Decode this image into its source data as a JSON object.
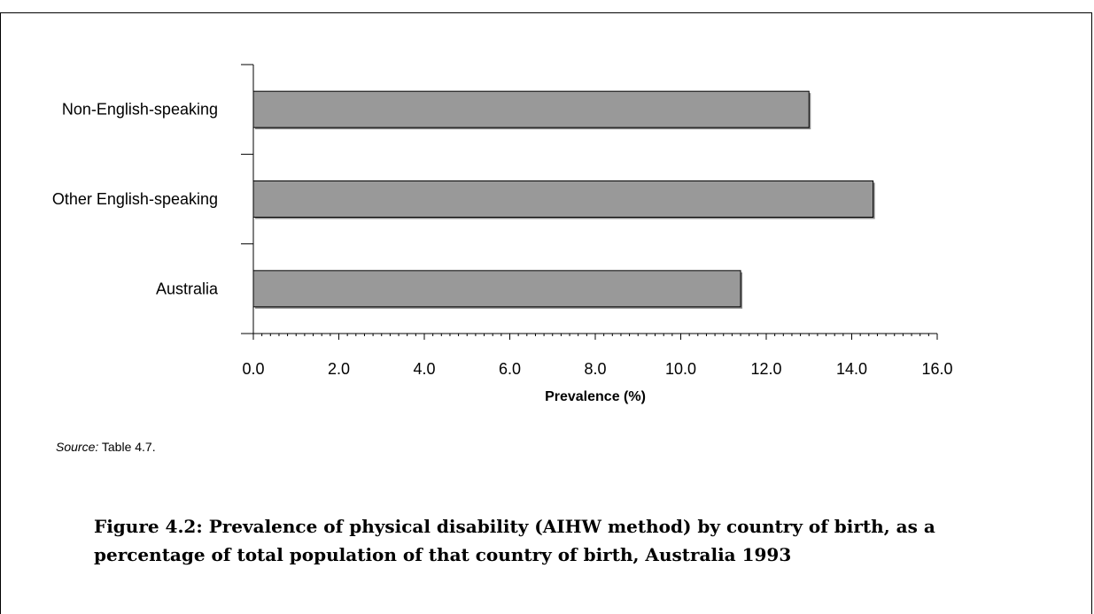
{
  "chart_data": {
    "type": "bar",
    "orientation": "horizontal",
    "categories": [
      "Non-English-speaking",
      "Other English-speaking",
      "Australia"
    ],
    "values": [
      13.0,
      14.5,
      11.4
    ],
    "xlabel": "Prevalence (%)",
    "ylabel": "",
    "xlim": [
      0,
      16
    ],
    "xticks": [
      "0.0",
      "2.0",
      "4.0",
      "6.0",
      "8.0",
      "10.0",
      "12.0",
      "14.0",
      "16.0"
    ],
    "grid": false,
    "legend": "none",
    "bar_color": "#999999"
  },
  "source": {
    "label": "Source:",
    "text": " Table 4.7."
  },
  "caption": "Figure 4.2: Prevalence of physical disability (AIHW method) by country of birth, as a percentage of total population of that country of birth, Australia 1993"
}
